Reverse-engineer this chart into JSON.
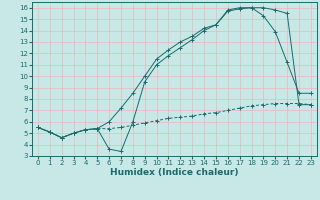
{
  "line1_x": [
    0,
    1,
    2,
    3,
    4,
    5,
    6,
    7,
    8,
    9,
    10,
    11,
    12,
    13,
    14,
    15,
    16,
    17,
    18,
    19,
    20,
    21,
    22,
    23
  ],
  "line1_y": [
    5.5,
    5.1,
    4.6,
    5.0,
    5.3,
    5.4,
    6.0,
    7.2,
    8.5,
    10.0,
    11.5,
    12.3,
    13.0,
    13.5,
    14.2,
    14.5,
    15.8,
    16.0,
    16.0,
    16.0,
    15.8,
    15.5,
    7.5,
    7.5
  ],
  "line2_x": [
    0,
    1,
    2,
    3,
    4,
    5,
    6,
    7,
    8,
    9,
    10,
    11,
    12,
    13,
    14,
    15,
    16,
    17,
    18,
    19,
    20,
    21,
    22,
    23
  ],
  "line2_y": [
    5.5,
    5.1,
    4.6,
    5.0,
    5.3,
    5.4,
    3.6,
    3.4,
    6.0,
    9.5,
    11.0,
    11.8,
    12.5,
    13.2,
    14.0,
    14.5,
    15.7,
    15.9,
    16.0,
    15.3,
    13.9,
    11.2,
    8.5,
    8.5
  ],
  "line3_x": [
    0,
    1,
    2,
    3,
    4,
    5,
    6,
    7,
    8,
    9,
    10,
    11,
    12,
    13,
    14,
    15,
    16,
    17,
    18,
    19,
    20,
    21,
    22,
    23
  ],
  "line3_y": [
    5.5,
    5.1,
    4.6,
    5.0,
    5.3,
    5.4,
    5.4,
    5.5,
    5.7,
    5.9,
    6.1,
    6.3,
    6.4,
    6.5,
    6.7,
    6.8,
    7.0,
    7.2,
    7.4,
    7.5,
    7.6,
    7.6,
    7.6,
    7.5
  ],
  "line_color": "#1a6b6b",
  "bg_color": "#c8e8e8",
  "grid_color": "#e8b8b8",
  "xlabel": "Humidex (Indice chaleur)",
  "ylim": [
    3,
    16.5
  ],
  "xlim": [
    -0.5,
    23.5
  ],
  "yticks": [
    3,
    4,
    5,
    6,
    7,
    8,
    9,
    10,
    11,
    12,
    13,
    14,
    15,
    16
  ],
  "xticks": [
    0,
    1,
    2,
    3,
    4,
    5,
    6,
    7,
    8,
    9,
    10,
    11,
    12,
    13,
    14,
    15,
    16,
    17,
    18,
    19,
    20,
    21,
    22,
    23
  ],
  "tick_fontsize": 5.0,
  "xlabel_fontsize": 6.5
}
